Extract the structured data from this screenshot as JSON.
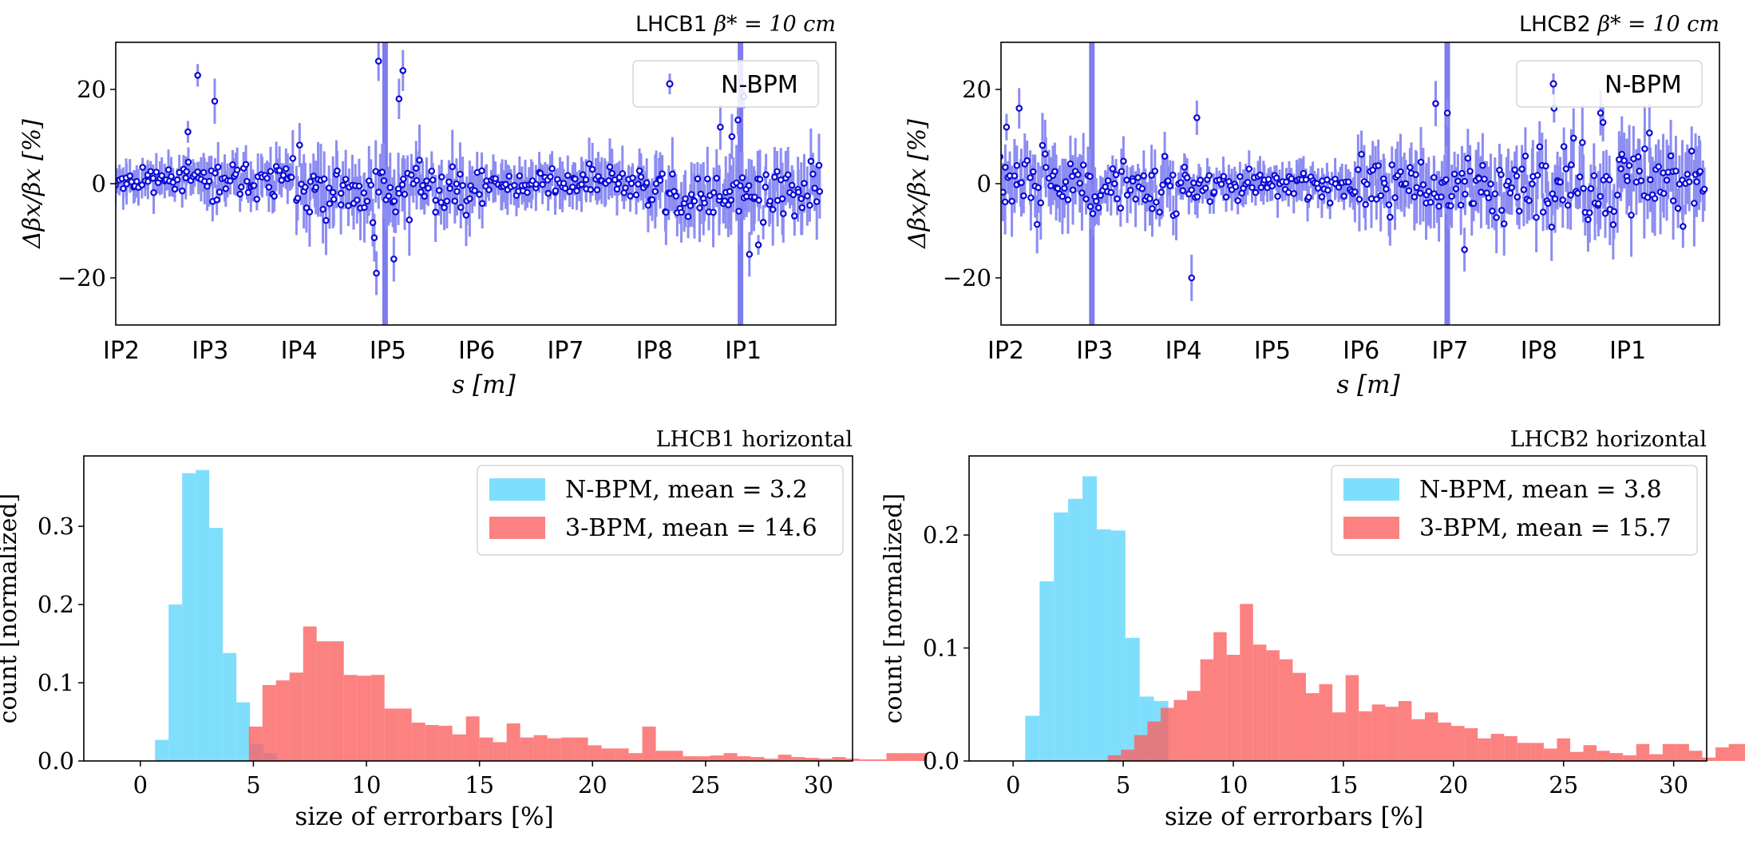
{
  "figure": {
    "colors": {
      "nbpm_points": "#0b0bd6",
      "nbpm_errorbars": "#8c8cf2",
      "ip_markers": "#7d7dee",
      "hist_nbpm": "#5fd6fb",
      "hist_3bpm": "#fb6262",
      "hist_overlap": "#b9586f"
    }
  },
  "chart_data": [
    {
      "id": "lhcb1-beating",
      "type": "scatter",
      "title": "LHCB1 β* = 10 cm",
      "title_beam": "LHCB1",
      "title_param": "β* = 10 cm",
      "xlabel": "s [m]",
      "ylabel": "Δβx/βx [%]",
      "ylim": [
        -30,
        30
      ],
      "yticks": [
        -20,
        0,
        20
      ],
      "xticks": [
        "IP2",
        "IP3",
        "IP4",
        "IP5",
        "IP6",
        "IP7",
        "IP8",
        "IP1"
      ],
      "legend": {
        "entries": [
          "N-BPM"
        ],
        "placement": "top-right"
      },
      "grid": false,
      "ip_vertical_lines": [
        "IP5",
        "IP1"
      ],
      "series": [
        {
          "name": "N-BPM",
          "segments": [
            {
              "from": "IP2",
              "to": "IP3",
              "mean": 1,
              "spread": 2.5,
              "err": 3.5
            },
            {
              "from": "IP3",
              "to": "IP4",
              "mean": 0.5,
              "spread": 3.5,
              "err": 4
            },
            {
              "from": "IP4",
              "to": "IP5",
              "mean": -3,
              "spread": 7,
              "err": 6
            },
            {
              "from": "IP5",
              "to": "IP6",
              "mean": -1,
              "spread": 5,
              "err": 6
            },
            {
              "from": "IP6",
              "to": "IP7",
              "mean": 0,
              "spread": 3,
              "err": 4
            },
            {
              "from": "IP7",
              "to": "IP8",
              "mean": 0,
              "spread": 3.5,
              "err": 4.5
            },
            {
              "from": "IP8",
              "to": "IP1",
              "mean": -3,
              "spread": 5,
              "err": 6
            },
            {
              "from": "IP1",
              "to": "end",
              "mean": -2,
              "spread": 5,
              "err": 6
            }
          ],
          "outliers": [
            {
              "x": "IP3",
              "y": 23
            },
            {
              "x": "IP3",
              "y": 17.5
            },
            {
              "x": "IP3",
              "y": 11
            },
            {
              "x": "IP5",
              "y": 26
            },
            {
              "x": "IP5",
              "y": 24
            },
            {
              "x": "IP5",
              "y": 18
            },
            {
              "x": "IP5",
              "y": -19
            },
            {
              "x": "IP5",
              "y": -16
            },
            {
              "x": "IP1",
              "y": 18.5
            },
            {
              "x": "IP1",
              "y": 13.5
            },
            {
              "x": "IP1",
              "y": 12
            },
            {
              "x": "IP1",
              "y": 10
            },
            {
              "x": "IP1",
              "y": -15
            },
            {
              "x": "IP1",
              "y": -13
            }
          ]
        }
      ]
    },
    {
      "id": "lhcb2-beating",
      "type": "scatter",
      "title": "LHCB2 β* = 10 cm",
      "title_beam": "LHCB2",
      "title_param": "β* = 10 cm",
      "xlabel": "s [m]",
      "ylabel": "Δβx/βx [%]",
      "ylim": [
        -30,
        30
      ],
      "yticks": [
        -20,
        0,
        20
      ],
      "xticks": [
        "IP2",
        "IP3",
        "IP4",
        "IP5",
        "IP6",
        "IP7",
        "IP8",
        "IP1"
      ],
      "legend": {
        "entries": [
          "N-BPM"
        ],
        "placement": "top-right"
      },
      "grid": false,
      "ip_vertical_lines": [
        "IP3",
        "IP7"
      ],
      "series": [
        {
          "name": "N-BPM",
          "segments": [
            {
              "from": "IP2",
              "to": "IP3",
              "mean": 0,
              "spread": 6,
              "err": 6
            },
            {
              "from": "IP3",
              "to": "IP4",
              "mean": -1,
              "spread": 5,
              "err": 5
            },
            {
              "from": "IP4",
              "to": "IP5",
              "mean": 0,
              "spread": 3,
              "err": 3.5
            },
            {
              "from": "IP5",
              "to": "IP6",
              "mean": 0,
              "spread": 3,
              "err": 3.5
            },
            {
              "from": "IP6",
              "to": "IP7",
              "mean": -1,
              "spread": 6,
              "err": 6
            },
            {
              "from": "IP7",
              "to": "IP8",
              "mean": -1,
              "spread": 6,
              "err": 6
            },
            {
              "from": "IP8",
              "to": "IP1",
              "mean": 0,
              "spread": 8,
              "err": 6
            },
            {
              "from": "IP1",
              "to": "end",
              "mean": 0,
              "spread": 9,
              "err": 7
            }
          ],
          "outliers": [
            {
              "x": "IP2",
              "y": 16
            },
            {
              "x": "IP2",
              "y": 12
            },
            {
              "x": "IP2",
              "y": -12
            },
            {
              "x": "IP4",
              "y": -20
            },
            {
              "x": "IP4",
              "y": 14
            },
            {
              "x": "IP7",
              "y": 17
            },
            {
              "x": "IP7",
              "y": 15
            },
            {
              "x": "IP7",
              "y": -14
            },
            {
              "x": "IP8",
              "y": 16
            },
            {
              "x": "IP1",
              "y": 15
            },
            {
              "x": "IP1",
              "y": 13
            }
          ]
        }
      ]
    },
    {
      "id": "lhcb1-hist",
      "type": "bar",
      "title": "LHCB1 horizontal",
      "xlabel": "size of errorbars [%]",
      "ylabel": "count [normalized]",
      "xlim": [
        -2.5,
        31.5
      ],
      "ylim": [
        0,
        0.39
      ],
      "xticks": [
        0,
        5,
        10,
        15,
        20,
        25,
        30
      ],
      "yticks": [
        0.0,
        0.1,
        0.2,
        0.3
      ],
      "legend": {
        "entries": [
          "N-BPM, mean = 3.2",
          "3-BPM, mean = 14.6"
        ],
        "placement": "top-right"
      },
      "grid": false,
      "series": [
        {
          "name": "N-BPM, mean = 3.2",
          "bin_start": 0.65,
          "bin_width": 0.6,
          "values": [
            0.027,
            0.2,
            0.368,
            0.372,
            0.298,
            0.138,
            0.075,
            0.022,
            0.01
          ]
        },
        {
          "name": "3-BPM, mean = 14.6",
          "bin_start": 4.8,
          "bin_width": 0.6,
          "values": [
            0.044,
            0.097,
            0.103,
            0.113,
            0.172,
            0.153,
            0.153,
            0.11,
            0.109,
            0.11,
            0.067,
            0.067,
            0.049,
            0.046,
            0.045,
            0.034,
            0.057,
            0.03,
            0.024,
            0.048,
            0.03,
            0.033,
            0.029,
            0.03,
            0.03,
            0.02,
            0.016,
            0.016,
            0.01,
            0.044,
            0.013,
            0.013,
            0.006,
            0.006,
            0.007,
            0.01,
            0.006,
            0.005,
            0.003,
            0.008,
            0.005,
            0.004,
            0.003,
            0.005,
            0.003,
            0.002,
            0.002,
            0.01,
            0.01,
            0.01
          ]
        }
      ]
    },
    {
      "id": "lhcb2-hist",
      "type": "bar",
      "title": "LHCB2 horizontal",
      "xlabel": "size of errorbars [%]",
      "ylabel": "count [normalized]",
      "xlim": [
        -2.0,
        31.5
      ],
      "ylim": [
        0,
        0.27
      ],
      "xticks": [
        0,
        5,
        10,
        15,
        20,
        25,
        30
      ],
      "yticks": [
        0.0,
        0.1,
        0.2
      ],
      "legend": {
        "entries": [
          "N-BPM, mean = 3.8",
          "3-BPM, mean = 15.7"
        ],
        "placement": "top-right"
      },
      "grid": false,
      "series": [
        {
          "name": "N-BPM, mean = 3.8",
          "bin_start": 0.55,
          "bin_width": 0.65,
          "values": [
            0.04,
            0.159,
            0.22,
            0.232,
            0.252,
            0.205,
            0.204,
            0.109,
            0.057,
            0.053
          ]
        },
        {
          "name": "3-BPM, mean = 15.7",
          "bin_start": 4.3,
          "bin_width": 0.6,
          "values": [
            0.005,
            0.01,
            0.023,
            0.035,
            0.047,
            0.054,
            0.062,
            0.09,
            0.114,
            0.094,
            0.139,
            0.103,
            0.098,
            0.09,
            0.078,
            0.06,
            0.068,
            0.043,
            0.076,
            0.044,
            0.05,
            0.048,
            0.053,
            0.037,
            0.043,
            0.034,
            0.031,
            0.029,
            0.02,
            0.024,
            0.022,
            0.016,
            0.016,
            0.011,
            0.02,
            0.008,
            0.014,
            0.009,
            0.007,
            0.005,
            0.015,
            0.006,
            0.015,
            0.015,
            0.009,
            0.003,
            0.012,
            0.015,
            0.015,
            0.003,
            0.003,
            0.015
          ]
        }
      ]
    }
  ]
}
